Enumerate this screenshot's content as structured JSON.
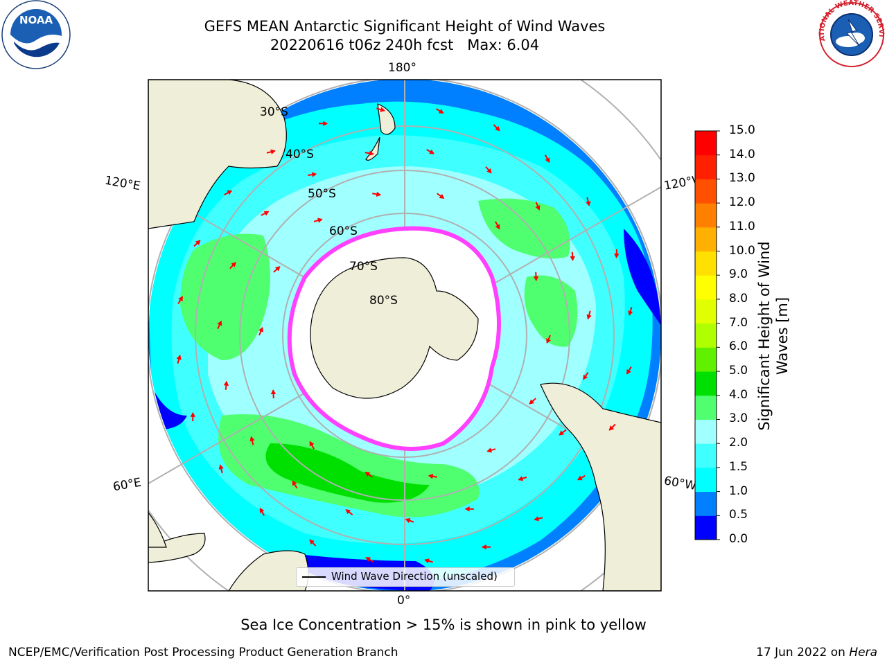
{
  "title": {
    "line1": "GEFS MEAN Antarctic Significant Height of Wind Waves",
    "line2": "20220616 t06z 240h fcst   Max: 6.04"
  },
  "map": {
    "projection": "south-polar-stereographic",
    "longitude_labels": {
      "top": "180°",
      "bottom": "0°",
      "upper_left": "120°E",
      "upper_right": "120°W",
      "lower_left": "60°E",
      "lower_right": "60°W"
    },
    "latitude_labels": [
      "30°S",
      "40°S",
      "50°S",
      "60°S",
      "70°S",
      "80°S"
    ],
    "colors": {
      "land": "#efeed8",
      "grid": "#b0b0b0",
      "arrows": "#ff0000",
      "ice_open": "#ffffff",
      "ice_edge": "#ff40ff"
    }
  },
  "legend": {
    "label": "Wind Wave Direction (unscaled)"
  },
  "colorbar": {
    "title": "Significant Height of Wind Waves [m]",
    "ticks": [
      "0.0",
      "0.5",
      "1.0",
      "1.5",
      "2.0",
      "3.0",
      "4.0",
      "5.0",
      "6.0",
      "7.0",
      "8.0",
      "9.0",
      "10.0",
      "11.0",
      "12.0",
      "13.0",
      "14.0",
      "15.0"
    ],
    "colors": [
      "#0000ff",
      "#0080ff",
      "#00ffff",
      "#40ffff",
      "#a0ffff",
      "#50ff70",
      "#00e000",
      "#60f000",
      "#b0ff00",
      "#e0ff00",
      "#ffff00",
      "#ffe000",
      "#ffb000",
      "#ff8000",
      "#ff5000",
      "#ff2000",
      "#ff0000"
    ]
  },
  "note": "Sea Ice Concentration > 15% is shown in pink to yellow",
  "footer": {
    "left": "NCEP/EMC/Verification Post Processing Product Generation Branch",
    "date": "17 Jun 2022 on",
    "host": "Hera"
  },
  "logos": {
    "left": "NOAA",
    "right": "NATIONAL WEATHER SERVICE"
  }
}
